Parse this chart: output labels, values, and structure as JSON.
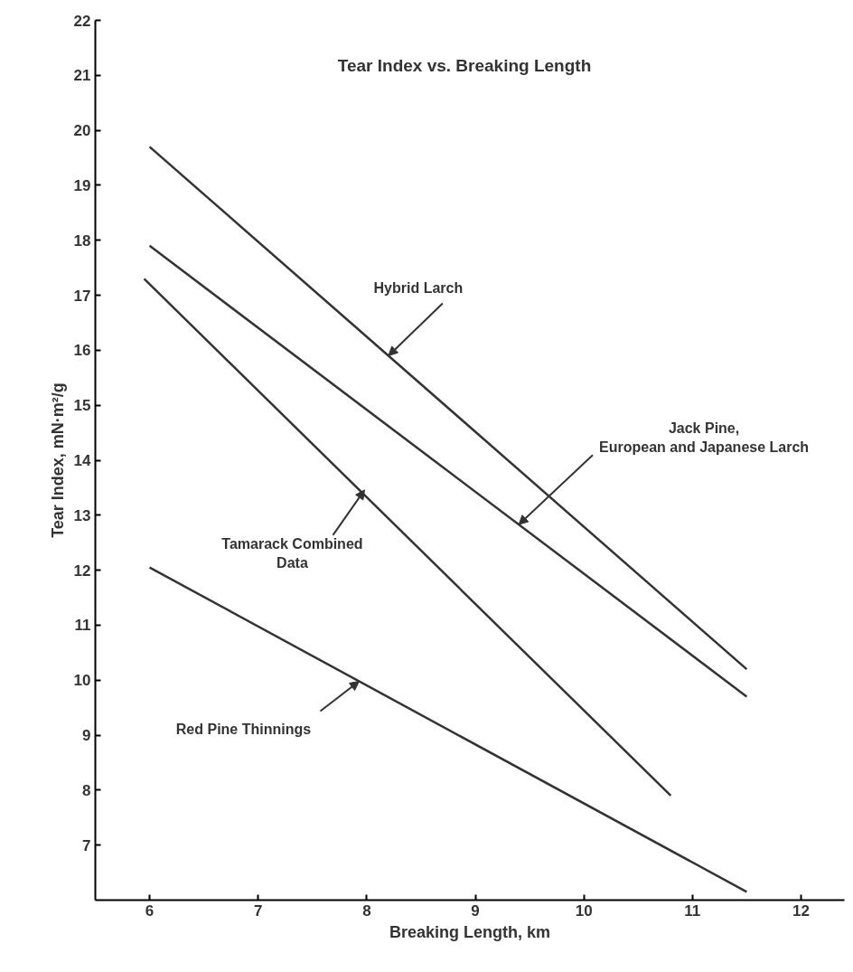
{
  "chart_data": {
    "type": "line",
    "title": "Tear Index vs. Breaking Length",
    "xlabel": "Breaking Length, km",
    "ylabel": "Tear Index, mN·m²/g",
    "xlim": [
      5.5,
      12.4
    ],
    "ylim": [
      6,
      22
    ],
    "xticks": [
      6,
      7,
      8,
      9,
      10,
      11,
      12
    ],
    "yticks": [
      7,
      8,
      9,
      10,
      11,
      12,
      13,
      14,
      15,
      16,
      17,
      18,
      19,
      20,
      21,
      22
    ],
    "grid": false,
    "marker": "none",
    "line_style": "solid",
    "series": [
      {
        "color": "#333333",
        "x": [
          6,
          11.5
        ],
        "values": [
          19.7,
          10.2
        ]
      },
      {
        "color": "#333333",
        "x": [
          6,
          11.5
        ],
        "values": [
          17.9,
          9.7
        ]
      },
      {
        "color": "#333333",
        "x": [
          5.95,
          10.8
        ],
        "values": [
          17.3,
          7.9
        ]
      },
      {
        "color": "#333333",
        "x": [
          6,
          11.5
        ],
        "values": [
          12.05,
          6.15
        ]
      }
    ],
    "annotations": [
      {
        "text": "Hybrid Larch",
        "x": 8.2,
        "y": 15.9
      },
      {
        "text": "Jack Pine,\nEuropean and Japanese Larch",
        "x": 9.4,
        "y": 12.83
      },
      {
        "text": "Tamarack Combined\nData",
        "x": 7.98,
        "y": 13.46
      },
      {
        "text": "Red Pine Thinnings",
        "x": 7.93,
        "y": 9.98
      }
    ]
  }
}
